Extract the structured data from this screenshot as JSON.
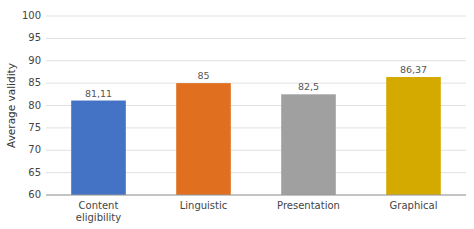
{
  "chart_data": {
    "type": "bar",
    "categories": [
      "Content\neligibility",
      "Linguistic",
      "Presentation",
      "Graphical"
    ],
    "values": [
      81.11,
      85,
      82.5,
      86.37
    ],
    "value_labels": [
      "81,11",
      "85",
      "82,5",
      "86,37"
    ],
    "colors": [
      "#4472C4",
      "#E07020",
      "#A0A0A0",
      "#D4AA00"
    ],
    "y_label": "Average validity",
    "ylim": [
      60,
      100
    ],
    "yticks": [
      60,
      65,
      70,
      75,
      80,
      85,
      90,
      95,
      100
    ],
    "grid": true,
    "data_labels": true
  }
}
